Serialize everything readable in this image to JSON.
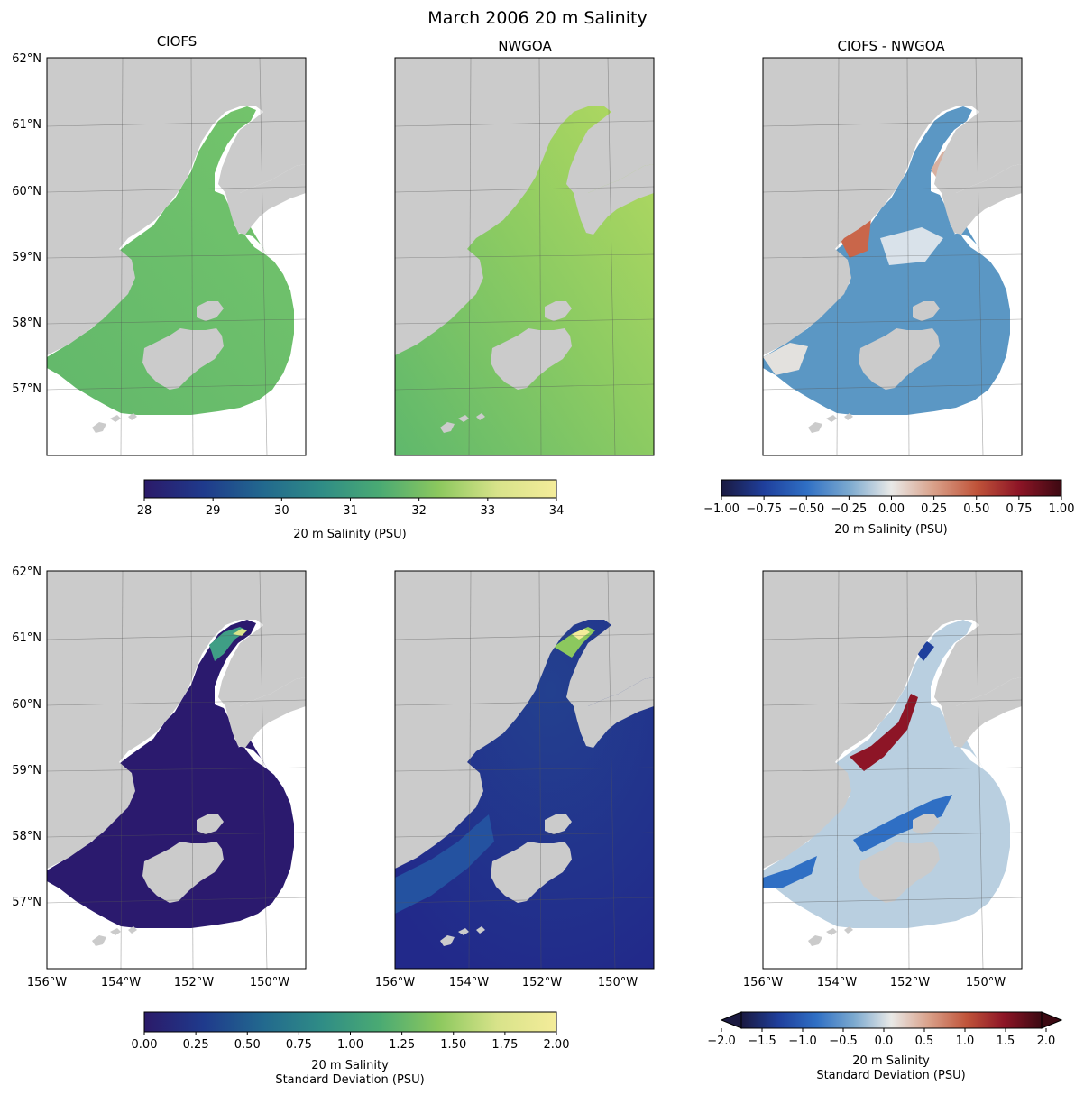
{
  "title": "March 2006 20 m Salinity",
  "panel_titles": [
    "CIOFS",
    "NWGOA",
    "CIOFS - NWGOA"
  ],
  "lat_labels": [
    "62°N",
    "61°N",
    "60°N",
    "59°N",
    "58°N",
    "57°N"
  ],
  "lon_labels": [
    "156°W",
    "154°W",
    "152°W",
    "150°W"
  ],
  "colorbars": {
    "salinity": {
      "label": "20 m Salinity (PSU)",
      "ticks": [
        "28",
        "29",
        "30",
        "31",
        "32",
        "33",
        "34"
      ],
      "colors": [
        "#2b1a69",
        "#1f3a8c",
        "#22688e",
        "#2f8c86",
        "#4aaa73",
        "#8cc85e",
        "#d8e38a",
        "#f4ec9a"
      ]
    },
    "salinity_diff": {
      "label": "20 m Salinity (PSU)",
      "ticks": [
        "−1.00",
        "−0.75",
        "−0.50",
        "−0.25",
        "0.00",
        "0.25",
        "0.50",
        "0.75",
        "1.00"
      ],
      "colors": [
        "#1a1940",
        "#1f3f9c",
        "#2f6fc4",
        "#7ba9cf",
        "#e9e9e7",
        "#d9a089",
        "#c0543a",
        "#8d1526",
        "#3c0912"
      ]
    },
    "std": {
      "label_line1": "20 m Salinity",
      "label_line2": "Standard Deviation (PSU)",
      "ticks": [
        "0.00",
        "0.25",
        "0.50",
        "0.75",
        "1.00",
        "1.25",
        "1.50",
        "1.75",
        "2.00"
      ],
      "colors": [
        "#2b1a69",
        "#1f3a8c",
        "#22688e",
        "#2f8c86",
        "#4aaa73",
        "#8cc85e",
        "#d8e38a",
        "#f4ec9a"
      ]
    },
    "std_diff": {
      "label_line1": "20 m Salinity",
      "label_line2": "Standard Deviation (PSU)",
      "ticks": [
        "−2.0",
        "−1.5",
        "−1.0",
        "−0.5",
        "0.0",
        "0.5",
        "1.0",
        "1.5",
        "2.0"
      ],
      "colors": [
        "#1a1940",
        "#1f3f9c",
        "#2f6fc4",
        "#7ba9cf",
        "#e9e9e7",
        "#d9a089",
        "#c0543a",
        "#8d1526",
        "#3c0912"
      ]
    }
  },
  "colors": {
    "land": "#cbcbcb",
    "ciofs_salinity": "#6fbf6b",
    "nwgoa_salinity": "#9fd162",
    "diff_blue": "#5b97c4",
    "diff_red": "#c9664a",
    "std_dark": "#2b1a6e",
    "std_blue": "#23368e"
  }
}
